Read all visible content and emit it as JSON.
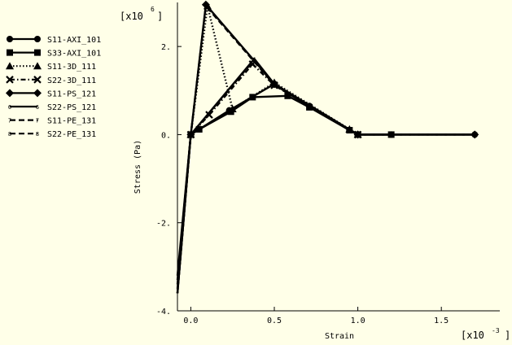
{
  "chart_data": {
    "type": "line",
    "xlabel": "Strain",
    "ylabel": "Stress (Pa)",
    "x_multiplier": "[x10",
    "x_multiplier_exp": "-3",
    "y_multiplier": "[x10",
    "y_multiplier_exp": "6",
    "xlim": [
      -0.08,
      1.85
    ],
    "ylim": [
      -4.0,
      3.0
    ],
    "x_ticks": [
      0.0,
      0.5,
      1.0,
      1.5
    ],
    "x_tick_labels": [
      "0.0",
      "0.5",
      "1.0",
      "1.5"
    ],
    "y_ticks": [
      -4,
      -2,
      0,
      2
    ],
    "y_tick_labels": [
      "-4.",
      "-2.",
      "0.",
      "2."
    ],
    "grid": false,
    "legend_position": "left",
    "series": [
      {
        "name": "S11-AXI_101",
        "style": "solid",
        "marker": "circle",
        "x": [
          -0.08,
          0.0,
          0.23,
          0.5,
          0.71,
          0.95,
          1.0,
          1.2,
          1.7
        ],
        "y": [
          -3.6,
          0.0,
          0.55,
          1.15,
          0.65,
          0.1,
          0.0,
          0.0,
          0.0
        ]
      },
      {
        "name": "S33-AXI_101",
        "style": "solid",
        "marker": "square",
        "x": [
          -0.08,
          0.0,
          0.05,
          0.24,
          0.37,
          0.58,
          0.71,
          0.95,
          1.0,
          1.2
        ],
        "y": [
          -3.6,
          0.0,
          0.12,
          0.52,
          0.85,
          0.88,
          0.62,
          0.1,
          0.0,
          0.0
        ]
      },
      {
        "name": "S11-3D_111",
        "style": "dotted",
        "marker": "triangle",
        "x": [
          -0.08,
          0.0,
          0.1,
          0.25,
          0.5,
          0.95,
          1.0
        ],
        "y": [
          -3.6,
          0.0,
          2.92,
          0.58,
          1.18,
          0.12,
          0.0
        ]
      },
      {
        "name": "S22-3D_111",
        "style": "dashdot",
        "marker": "x",
        "x": [
          -0.08,
          0.0,
          0.11,
          0.37,
          0.5,
          1.0
        ],
        "y": [
          -3.6,
          0.0,
          0.45,
          1.6,
          1.12,
          0.0
        ]
      },
      {
        "name": "S11-PS_121",
        "style": "solid",
        "marker": "diamond",
        "x": [
          -0.08,
          0.0,
          0.09,
          0.5,
          1.0,
          1.7
        ],
        "y": [
          -3.2,
          0.0,
          2.95,
          1.15,
          0.0,
          0.0
        ]
      },
      {
        "name": "S22-PS_121",
        "style": "solid",
        "marker": "6",
        "x": [
          -0.08,
          0.0,
          0.38,
          0.5,
          1.0,
          1.2,
          1.7
        ],
        "y": [
          -3.4,
          0.0,
          1.72,
          1.15,
          0.0,
          0.0,
          0.0
        ]
      },
      {
        "name": "S11-PE_131",
        "style": "dashed",
        "marker": "7",
        "x": [
          -0.08,
          0.0,
          0.09,
          0.5,
          1.0,
          1.7
        ],
        "y": [
          -3.3,
          0.0,
          2.92,
          1.13,
          0.0,
          0.0
        ]
      },
      {
        "name": "S22-PE_131",
        "style": "dashed",
        "marker": "8",
        "x": [
          -0.08,
          0.0,
          0.38,
          0.5,
          1.0,
          1.7
        ],
        "y": [
          -3.5,
          0.0,
          1.7,
          1.12,
          0.0,
          0.0
        ]
      }
    ]
  }
}
